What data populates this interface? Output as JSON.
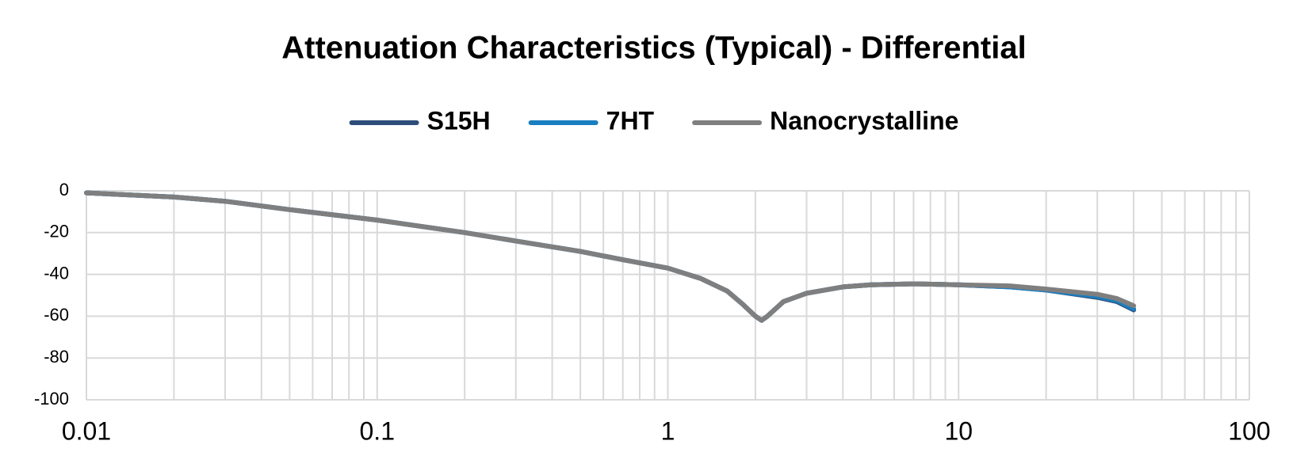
{
  "chart_data": {
    "type": "line",
    "title": "Attenuation Characteristics (Typical) - Differential",
    "x": [
      0.01,
      0.02,
      0.03,
      0.05,
      0.1,
      0.2,
      0.3,
      0.5,
      0.7,
      1,
      1.3,
      1.6,
      1.8,
      2.0,
      2.1,
      2.2,
      2.5,
      3,
      4,
      5,
      7,
      10,
      15,
      20,
      30,
      35,
      40
    ],
    "series": [
      {
        "name": "S15H",
        "color": "#2e4d7b",
        "values": [
          -1,
          -3,
          -5,
          -9,
          -14,
          -20,
          -24,
          -29,
          -33,
          -37,
          -42,
          -48,
          -54,
          -60,
          -62,
          -60,
          -53,
          -49,
          -46,
          -45,
          -44.5,
          -45,
          -46,
          -47.5,
          -51,
          -53,
          -57
        ]
      },
      {
        "name": "7HT",
        "color": "#1a7fc1",
        "values": [
          -1,
          -3,
          -5,
          -9,
          -14,
          -20,
          -24,
          -29,
          -33,
          -37,
          -42,
          -48,
          -54,
          -60,
          -62,
          -60,
          -53,
          -49,
          -46,
          -45,
          -44.5,
          -45,
          -46,
          -47.5,
          -50.5,
          -52.5,
          -56.5
        ]
      },
      {
        "name": "Nanocrystalline",
        "color": "#7f7f7f",
        "values": [
          -1,
          -3,
          -5,
          -9,
          -14,
          -20,
          -24,
          -29,
          -33,
          -37,
          -42,
          -48,
          -54,
          -60,
          -62,
          -60,
          -53,
          -49,
          -46,
          -45,
          -44.5,
          -45,
          -45.5,
          -47,
          -49.5,
          -51.5,
          -55
        ]
      }
    ],
    "xlim": [
      0.01,
      100
    ],
    "xticks": [
      0.01,
      0.1,
      1,
      10,
      100
    ],
    "xlog": true,
    "ylim": [
      -100,
      0
    ],
    "yticks": [
      0,
      -20,
      -40,
      -60,
      -80,
      -100
    ],
    "grid": true,
    "minor_grid": true,
    "legend": "top"
  }
}
